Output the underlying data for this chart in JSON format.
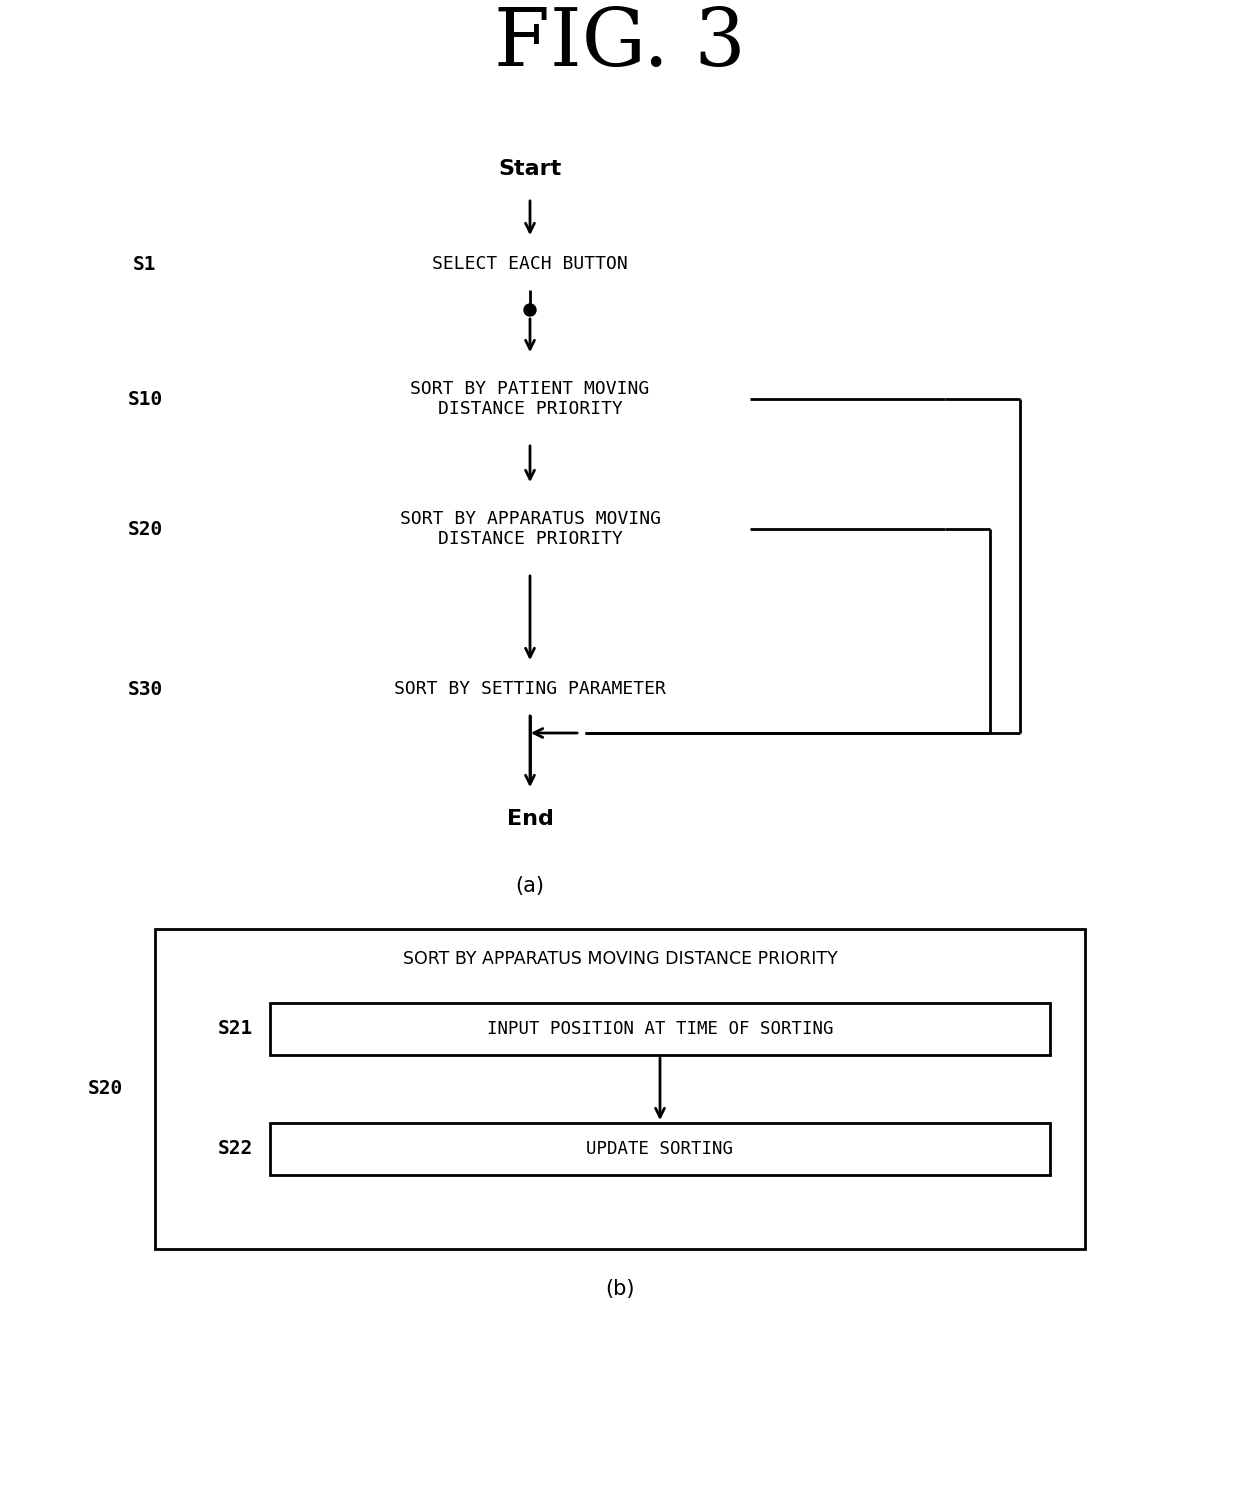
{
  "title": "FIG. 3",
  "title_fontsize": 52,
  "bg_color": "#ffffff",
  "line_color": "#000000",
  "text_color": "#000000",
  "fig_width": 12.4,
  "fig_height": 14.99,
  "diagram_a": {
    "label": "(a)",
    "start_text": "Start",
    "end_text": "End",
    "steps": [
      {
        "id": "S1",
        "label": "S1",
        "text": "SELECT EACH BUTTON",
        "type": "rect"
      },
      {
        "id": "S10",
        "label": "S10",
        "text": "SORT BY PATIENT MOVING\nDISTANCE PRIORITY",
        "type": "rect"
      },
      {
        "id": "S20",
        "label": "S20",
        "text": "SORT BY APPARATUS MOVING\nDISTANCE PRIORITY",
        "type": "rect"
      },
      {
        "id": "S30",
        "label": "S30",
        "text": "SORT BY SETTING PARAMETER",
        "type": "rect"
      }
    ]
  },
  "diagram_b": {
    "label": "(b)",
    "outer_label": "S20",
    "outer_title": "SORT BY APPARATUS MOVING DISTANCE PRIORITY",
    "steps": [
      {
        "id": "S21",
        "label": "S21",
        "text": "INPUT POSITION AT TIME OF SORTING",
        "type": "rect"
      },
      {
        "id": "S22",
        "label": "S22",
        "text": "UPDATE SORTING",
        "type": "rect"
      }
    ]
  }
}
